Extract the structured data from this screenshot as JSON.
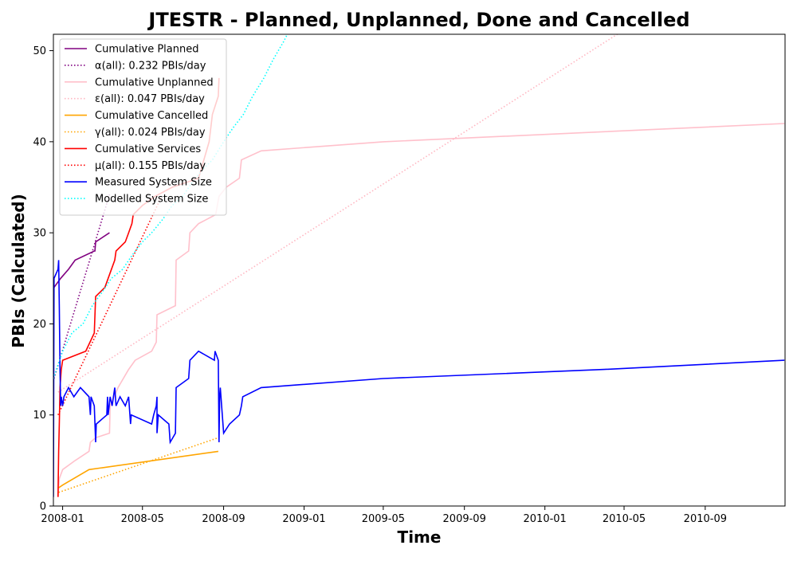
{
  "chart_data": {
    "type": "line",
    "title": "JTESTR - Planned, Unplanned, Done  and Cancelled",
    "xlabel": "Time",
    "ylabel": "PBIs (Calculated)",
    "xlim": [
      "2007-12-18",
      "2010-12-31"
    ],
    "ylim": [
      0,
      51.8
    ],
    "grid": false,
    "legend_position": "top-left",
    "x_ticks": [
      "2008-01",
      "2008-05",
      "2008-09",
      "2009-01",
      "2009-05",
      "2009-09",
      "2010-01",
      "2010-05",
      "2010-09"
    ],
    "y_ticks": [
      0,
      10,
      20,
      30,
      40,
      50
    ],
    "series": [
      {
        "name": "Cumulative Planned",
        "color": "#800080",
        "style": "solid",
        "points": [
          [
            "2007-12-19",
            24
          ],
          [
            "2007-12-29",
            25
          ],
          [
            "2008-01-10",
            26
          ],
          [
            "2008-01-20",
            27
          ],
          [
            "2008-02-18",
            28
          ],
          [
            "2008-02-19",
            28
          ],
          [
            "2008-02-20",
            29
          ],
          [
            "2008-03-12",
            30
          ]
        ]
      },
      {
        "name": "α(all): 0.232 PBIs/day",
        "color": "#800080",
        "style": "dotted",
        "points": [
          [
            "2007-12-19",
            14
          ],
          [
            "2008-03-12",
            34.2
          ]
        ]
      },
      {
        "name": "Cumulative Unplanned",
        "color": "#ffc0cb",
        "style": "solid",
        "points": [
          [
            "2007-12-25",
            1
          ],
          [
            "2007-12-27",
            3
          ],
          [
            "2008-01-01",
            4
          ],
          [
            "2008-01-20",
            5
          ],
          [
            "2008-02-10",
            6
          ],
          [
            "2008-02-12",
            7
          ],
          [
            "2008-02-20",
            7.5
          ],
          [
            "2008-03-12",
            8
          ],
          [
            "2008-03-13",
            11
          ],
          [
            "2008-03-25",
            13
          ],
          [
            "2008-04-10",
            15
          ],
          [
            "2008-04-20",
            16
          ],
          [
            "2008-05-15",
            17
          ],
          [
            "2008-05-22",
            18
          ],
          [
            "2008-05-23",
            21
          ],
          [
            "2008-06-20",
            22
          ],
          [
            "2008-06-21",
            27
          ],
          [
            "2008-07-10",
            28
          ],
          [
            "2008-07-12",
            30
          ],
          [
            "2008-07-25",
            31
          ],
          [
            "2008-08-20",
            32
          ],
          [
            "2008-08-25",
            34
          ],
          [
            "2008-09-05",
            35
          ],
          [
            "2008-09-25",
            36
          ],
          [
            "2008-09-28",
            38
          ],
          [
            "2008-10-28",
            39
          ],
          [
            "2009-05-01",
            40
          ],
          [
            "2010-12-30",
            42
          ]
        ]
      },
      {
        "name": "ε(all): 0.047 PBIs/day",
        "color": "#ffb6c1",
        "style": "dotted",
        "points": [
          [
            "2007-12-25",
            12.5
          ],
          [
            "2010-04-25",
            52
          ]
        ]
      },
      {
        "name": "Cumulative Cancelled",
        "color": "#ffa500",
        "style": "solid",
        "points": [
          [
            "2007-12-26",
            2
          ],
          [
            "2008-01-01",
            2.3
          ],
          [
            "2008-02-10",
            4
          ],
          [
            "2008-08-24",
            6
          ]
        ]
      },
      {
        "name": "γ(all): 0.024 PBIs/day",
        "color": "#ffa500",
        "style": "dotted",
        "points": [
          [
            "2007-12-26",
            1.5
          ],
          [
            "2008-08-24",
            7.5
          ]
        ]
      },
      {
        "name": "Cumulative Services",
        "color": "#ff0000",
        "style": "solid",
        "points": [
          [
            "2007-12-25",
            1
          ],
          [
            "2007-12-26",
            6
          ],
          [
            "2007-12-27",
            9
          ],
          [
            "2007-12-28",
            13
          ],
          [
            "2007-12-30",
            15
          ],
          [
            "2008-01-01",
            16
          ],
          [
            "2008-02-05",
            17
          ],
          [
            "2008-02-18",
            19
          ],
          [
            "2008-02-20",
            23
          ],
          [
            "2008-03-05",
            24
          ],
          [
            "2008-03-10",
            25
          ],
          [
            "2008-03-20",
            27
          ],
          [
            "2008-03-22",
            28
          ],
          [
            "2008-04-05",
            29
          ],
          [
            "2008-04-10",
            30
          ],
          [
            "2008-04-15",
            31
          ],
          [
            "2008-04-17",
            32
          ],
          [
            "2008-05-01",
            33
          ],
          [
            "2008-05-20",
            34
          ],
          [
            "2008-06-15",
            35
          ],
          [
            "2008-07-25",
            36
          ],
          [
            "2008-08-10",
            40
          ],
          [
            "2008-08-15",
            43
          ],
          [
            "2008-08-24",
            45
          ],
          [
            "2008-08-25",
            47
          ]
        ]
      },
      {
        "name": "μ(all): 0.155 PBIs/day",
        "color": "#ff0000",
        "style": "dotted",
        "points": [
          [
            "2007-12-25",
            10
          ],
          [
            "2008-05-30",
            34
          ]
        ]
      },
      {
        "name": "Measured System Size",
        "color": "#0000ff",
        "style": "solid",
        "points": [
          [
            "2007-12-18",
            1
          ],
          [
            "2007-12-19",
            25
          ],
          [
            "2007-12-25",
            26
          ],
          [
            "2007-12-26",
            27
          ],
          [
            "2007-12-27",
            22
          ],
          [
            "2007-12-28",
            15
          ],
          [
            "2007-12-29",
            11
          ],
          [
            "2007-12-30",
            12
          ],
          [
            "2008-01-01",
            11
          ],
          [
            "2008-01-03",
            12
          ],
          [
            "2008-01-10",
            13
          ],
          [
            "2008-01-18",
            12
          ],
          [
            "2008-01-28",
            13
          ],
          [
            "2008-02-10",
            12
          ],
          [
            "2008-02-12",
            10
          ],
          [
            "2008-02-13",
            12
          ],
          [
            "2008-02-18",
            11
          ],
          [
            "2008-02-20",
            7
          ],
          [
            "2008-02-21",
            9
          ],
          [
            "2008-03-08",
            10
          ],
          [
            "2008-03-09",
            12
          ],
          [
            "2008-03-10",
            10
          ],
          [
            "2008-03-13",
            12
          ],
          [
            "2008-03-16",
            11
          ],
          [
            "2008-03-20",
            13
          ],
          [
            "2008-03-22",
            11
          ],
          [
            "2008-03-28",
            12
          ],
          [
            "2008-04-05",
            11
          ],
          [
            "2008-04-10",
            12
          ],
          [
            "2008-04-12",
            10
          ],
          [
            "2008-04-13",
            9
          ],
          [
            "2008-04-14",
            10
          ],
          [
            "2008-05-15",
            9
          ],
          [
            "2008-05-18",
            10
          ],
          [
            "2008-05-22",
            11
          ],
          [
            "2008-05-23",
            12
          ],
          [
            "2008-05-23",
            8
          ],
          [
            "2008-05-25",
            10
          ],
          [
            "2008-06-10",
            9
          ],
          [
            "2008-06-12",
            7
          ],
          [
            "2008-06-20",
            8
          ],
          [
            "2008-06-21",
            13
          ],
          [
            "2008-07-10",
            14
          ],
          [
            "2008-07-12",
            16
          ],
          [
            "2008-07-25",
            17
          ],
          [
            "2008-08-18",
            16
          ],
          [
            "2008-08-19",
            17
          ],
          [
            "2008-08-24",
            16
          ],
          [
            "2008-08-25",
            7
          ],
          [
            "2008-08-26",
            12
          ],
          [
            "2008-08-27",
            13
          ],
          [
            "2008-09-01",
            8
          ],
          [
            "2008-09-10",
            9
          ],
          [
            "2008-09-25",
            10
          ],
          [
            "2008-09-28",
            11
          ],
          [
            "2008-09-30",
            12
          ],
          [
            "2008-10-28",
            13
          ],
          [
            "2009-05-01",
            14
          ],
          [
            "2010-04-01",
            15
          ],
          [
            "2010-12-30",
            16
          ]
        ]
      },
      {
        "name": "Modelled System Size",
        "color": "#00ffff",
        "style": "dotted",
        "points": [
          [
            "2007-12-18",
            14
          ],
          [
            "2008-01-01",
            17
          ],
          [
            "2008-01-15",
            19
          ],
          [
            "2008-02-01",
            20
          ],
          [
            "2008-02-15",
            22
          ],
          [
            "2008-03-01",
            23.5
          ],
          [
            "2008-03-15",
            25
          ],
          [
            "2008-04-01",
            26
          ],
          [
            "2008-04-15",
            27.5
          ],
          [
            "2008-05-01",
            29
          ],
          [
            "2008-05-15",
            30
          ],
          [
            "2008-06-01",
            31.5
          ],
          [
            "2008-06-15",
            33
          ],
          [
            "2008-07-01",
            34
          ],
          [
            "2008-07-15",
            35.5
          ],
          [
            "2008-08-01",
            37
          ],
          [
            "2008-08-15",
            38
          ],
          [
            "2008-09-01",
            40
          ],
          [
            "2008-09-15",
            41.5
          ],
          [
            "2008-10-01",
            43
          ],
          [
            "2008-10-15",
            45
          ],
          [
            "2008-11-01",
            47
          ],
          [
            "2008-11-15",
            49
          ],
          [
            "2008-12-01",
            51
          ],
          [
            "2008-12-08",
            52
          ]
        ]
      }
    ]
  }
}
